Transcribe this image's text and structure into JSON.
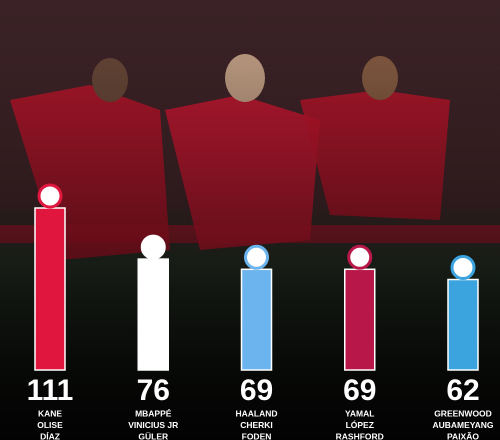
{
  "chart_data": {
    "type": "bar",
    "categories": [
      [
        "KANE",
        "OLISE",
        "DÍAZ"
      ],
      [
        "MBAPPÉ",
        "VINICIUS JR",
        "GÜLER"
      ],
      [
        "HAALAND",
        "CHERKI",
        "FODEN"
      ],
      [
        "YAMAL",
        "LÓPEZ",
        "RASHFORD"
      ],
      [
        "GREENWOOD",
        "AUBAMEYANG",
        "PAIXÃO"
      ]
    ],
    "values": [
      111,
      76,
      69,
      69,
      62
    ],
    "colors": [
      "#e0163f",
      "#ffffff",
      "#6cb4ee",
      "#b8174a",
      "#3ba3dd"
    ]
  }
}
